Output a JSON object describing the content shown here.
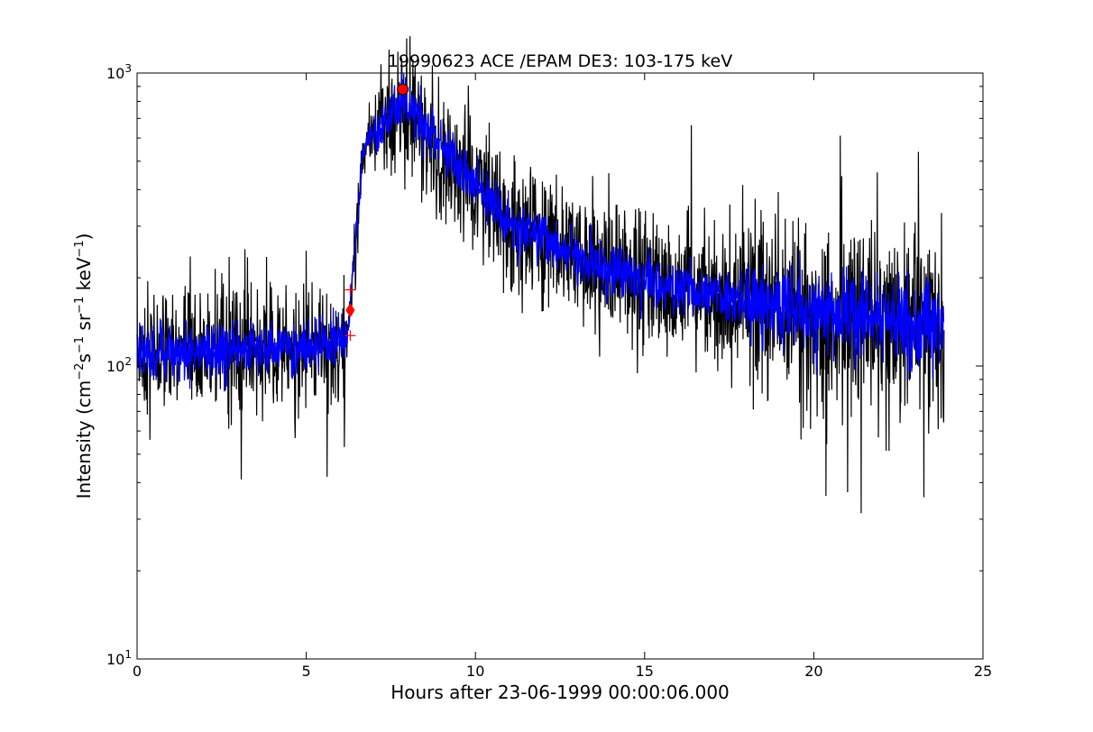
{
  "chart_data": {
    "type": "line",
    "title": "19990623 ACE /EPAM DE3: 103-175 keV",
    "xlabel": "Hours after 23-06-1999 00:00:06.000",
    "ylabel": {
      "prefix": "Intensity (cm",
      "exp1": "−2",
      "mid1": "s",
      "exp2": "−1",
      "mid2": " sr",
      "exp3": "−1",
      "mid3": " keV",
      "exp4": "−1",
      "suffix": ")"
    },
    "xlim": [
      0,
      25
    ],
    "ylim": [
      10,
      1000
    ],
    "yscale": "log",
    "grid": false,
    "x_ticks": [
      0,
      5,
      10,
      15,
      20,
      25
    ],
    "x_tick_labels": [
      "0",
      "5",
      "10",
      "15",
      "20",
      "25"
    ],
    "y_ticks": [
      10,
      100,
      1000
    ],
    "y_tick_labels": [
      {
        "base": "10",
        "exp": "1"
      },
      {
        "base": "10",
        "exp": "2"
      },
      {
        "base": "10",
        "exp": "3"
      }
    ],
    "series": [
      {
        "role": "raw",
        "color": "#000000",
        "x_range": [
          0,
          23.85
        ],
        "envelope": [
          [
            0.0,
            110
          ],
          [
            1.0,
            110
          ],
          [
            2.0,
            112
          ],
          [
            3.0,
            115
          ],
          [
            4.0,
            115
          ],
          [
            5.0,
            115
          ],
          [
            6.0,
            118
          ],
          [
            6.22,
            125
          ],
          [
            6.3,
            165
          ],
          [
            6.4,
            230
          ],
          [
            6.55,
            360
          ],
          [
            6.7,
            560
          ],
          [
            7.0,
            630
          ],
          [
            7.5,
            700
          ],
          [
            7.85,
            790
          ],
          [
            8.2,
            720
          ],
          [
            8.6,
            640
          ],
          [
            9.0,
            560
          ],
          [
            9.5,
            470
          ],
          [
            10.0,
            410
          ],
          [
            10.5,
            350
          ],
          [
            11.0,
            310
          ],
          [
            12.0,
            270
          ],
          [
            13.0,
            235
          ],
          [
            14.0,
            210
          ],
          [
            15.0,
            195
          ],
          [
            16.0,
            180
          ],
          [
            17.0,
            175
          ],
          [
            18.0,
            165
          ],
          [
            19.0,
            155
          ],
          [
            20.0,
            152
          ],
          [
            21.0,
            148
          ],
          [
            22.0,
            145
          ],
          [
            23.0,
            142
          ],
          [
            23.85,
            140
          ]
        ]
      },
      {
        "role": "smoothed",
        "color": "#0000ff",
        "x_range": [
          0,
          23.85
        ],
        "envelope": [
          [
            0.0,
            110
          ],
          [
            1.0,
            110
          ],
          [
            2.0,
            112
          ],
          [
            3.0,
            115
          ],
          [
            4.0,
            115
          ],
          [
            5.0,
            115
          ],
          [
            6.0,
            118
          ],
          [
            6.22,
            125
          ],
          [
            6.3,
            165
          ],
          [
            6.4,
            230
          ],
          [
            6.55,
            360
          ],
          [
            6.7,
            560
          ],
          [
            7.0,
            630
          ],
          [
            7.5,
            700
          ],
          [
            7.85,
            790
          ],
          [
            8.2,
            720
          ],
          [
            8.6,
            640
          ],
          [
            9.0,
            560
          ],
          [
            9.5,
            470
          ],
          [
            10.0,
            410
          ],
          [
            10.5,
            350
          ],
          [
            11.0,
            310
          ],
          [
            12.0,
            270
          ],
          [
            13.0,
            235
          ],
          [
            14.0,
            210
          ],
          [
            15.0,
            195
          ],
          [
            16.0,
            180
          ],
          [
            17.0,
            175
          ],
          [
            18.0,
            165
          ],
          [
            19.0,
            155
          ],
          [
            20.0,
            152
          ],
          [
            21.0,
            148
          ],
          [
            22.0,
            145
          ],
          [
            23.0,
            142
          ],
          [
            23.85,
            140
          ]
        ]
      }
    ],
    "markers": [
      {
        "shape": "circle",
        "x": 7.85,
        "y": 880,
        "color": "#ff0000"
      },
      {
        "shape": "diamond",
        "x": 6.3,
        "y": 155,
        "color": "#ff0000"
      },
      {
        "shape": "plus",
        "x": 6.3,
        "y": 182,
        "color": "#ff0000"
      },
      {
        "shape": "plus",
        "x": 6.3,
        "y": 127,
        "color": "#ff0000"
      }
    ]
  }
}
